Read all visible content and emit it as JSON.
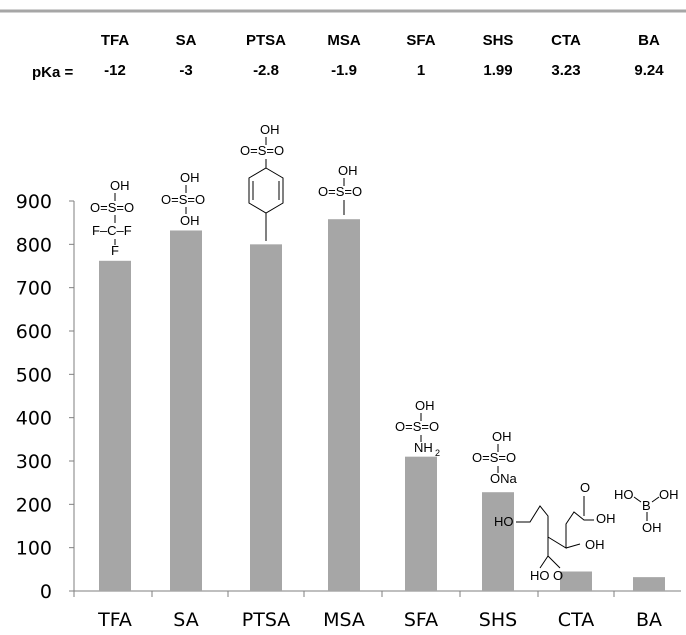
{
  "chart_data": {
    "type": "bar",
    "categories": [
      "TFA",
      "SA",
      "PTSA",
      "MSA",
      "SFA",
      "SHS",
      "CTA",
      "BA"
    ],
    "header_labels": [
      "TFA",
      "SA",
      "PTSA",
      "MSA",
      "SFA",
      "SHS",
      "CTA",
      "BA"
    ],
    "pka_label": "pKa =",
    "pka_values": [
      "-12",
      "-3",
      "-2.8",
      "-1.9",
      "1",
      "1.99",
      "3.23",
      "9.24"
    ],
    "values": [
      762,
      832,
      800,
      858,
      310,
      228,
      45,
      32
    ],
    "ylim": [
      0,
      900
    ],
    "yticks": [
      0,
      100,
      200,
      300,
      400,
      500,
      600,
      700,
      800,
      900
    ],
    "title": "",
    "xlabel": "",
    "ylabel": "",
    "grid": false,
    "bar_color": "#a6a6a6",
    "top_rule_color": "#a6a6a6",
    "structure_labels": {
      "tfa": [
        "OH",
        "O=S=O",
        "F–C–F",
        "F"
      ],
      "sa": [
        "OH",
        "O=S=O",
        "OH"
      ],
      "ptsa": [
        "OH",
        "O=S=O"
      ],
      "msa": [
        "OH",
        "O=S=O"
      ],
      "sfa": [
        "OH",
        "O=S=O",
        "NH",
        "2"
      ],
      "shs": [
        "OH",
        "O=S=O",
        "ONa"
      ],
      "cta": [
        "O",
        "OH",
        "HO",
        "OH",
        "HO",
        "O"
      ],
      "ba": [
        "HO",
        "B",
        "OH",
        "OH"
      ]
    }
  }
}
